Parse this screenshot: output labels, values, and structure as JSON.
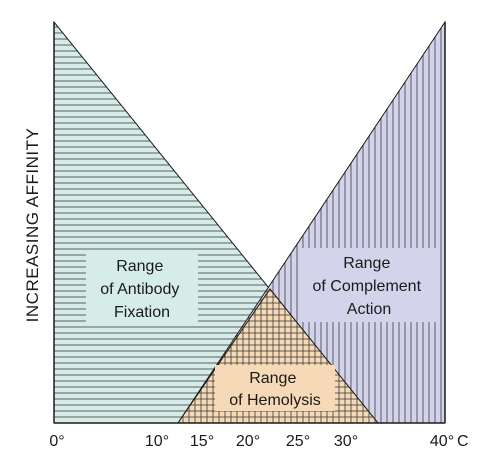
{
  "y_axis": {
    "label": "INCREASING AFFINITY"
  },
  "x_axis": {
    "unit": "C",
    "ticks": [
      {
        "label": "0°",
        "value": 0
      },
      {
        "label": "10°",
        "value": 10
      },
      {
        "label": "15°",
        "value": 15
      },
      {
        "label": "20°",
        "value": 20
      },
      {
        "label": "25°",
        "value": 25
      },
      {
        "label": "30°",
        "value": 30
      },
      {
        "label": "40°",
        "value": 40
      }
    ]
  },
  "regions": {
    "antibody_fixation": {
      "lines": [
        "Range",
        "of Antibody",
        "Fixation"
      ],
      "color": "#d6ece8",
      "pattern": "horizontal-lines"
    },
    "complement_action": {
      "lines": [
        "Range",
        "of Complement",
        "Action"
      ],
      "color": "#d3d3ec",
      "pattern": "vertical-lines"
    },
    "hemolysis": {
      "lines": [
        "Range",
        "of Hemolysis"
      ],
      "color": "#f6d9b6",
      "pattern": "grid"
    }
  },
  "colors": {
    "line": "#1a1a1a"
  }
}
